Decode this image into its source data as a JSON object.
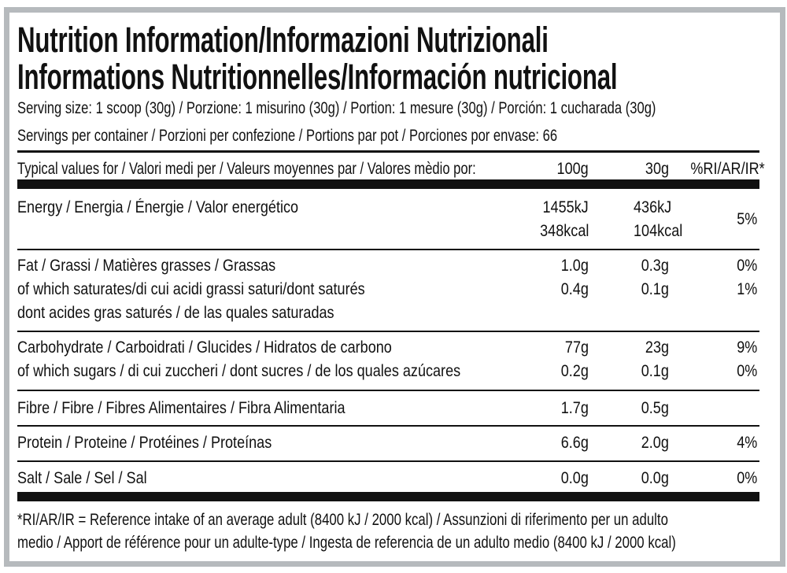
{
  "title_line1": "Nutrition Information/Informazioni Nutrizionali",
  "title_line2": "Informations Nutritionnelles/Información nutricional",
  "serving_size": "Serving size: 1 scoop (30g) / Porzione: 1 misurino (30g) / Portion: 1 mesure (30g) / Porción: 1 cucharada (30g)",
  "servings_per_container": "Servings per container / Porzioni per confezione / Portions par pot / Porciones por envase: 66",
  "header": {
    "label": "Typical values for / Valori medi per / Valeurs moyennes par / Valores mèdio por:",
    "col_100g": "100g",
    "col_30g": "30g",
    "col_ri": "%RI/AR/IR*"
  },
  "energy": {
    "label": "Energy / Energia / Énergie / Valor energético",
    "kj_100g": "1455kJ",
    "kcal_100g": "348kcal",
    "kj_30g": "436kJ",
    "kcal_30g": "104kcal",
    "ri": "5%"
  },
  "fat": {
    "label": "Fat / Grassi / Matières grasses / Grassas",
    "v100": "1.0g",
    "v30": "0.3g",
    "ri": "0%"
  },
  "saturates": {
    "label1": "of which saturates/di cui acidi grassi saturi/dont saturés",
    "label2": "dont acides gras saturés / de las quales saturadas",
    "v100": "0.4g",
    "v30": "0.1g",
    "ri": "1%"
  },
  "carbohydrate": {
    "label": "Carbohydrate / Carboidrati / Glucides / Hidratos de carbono",
    "v100": "77g",
    "v30": "23g",
    "ri": "9%"
  },
  "sugars": {
    "label": "of which sugars / di cui zuccheri / dont sucres / de los quales azúcares",
    "v100": "0.2g",
    "v30": "0.1g",
    "ri": "0%"
  },
  "fibre": {
    "label": "Fibre / Fibre / Fibres Alimentaires / Fibra Alimentaria",
    "v100": "1.7g",
    "v30": "0.5g"
  },
  "protein": {
    "label": "Protein / Proteine / Protéines / Proteínas",
    "v100": "6.6g",
    "v30": "2.0g",
    "ri": "4%"
  },
  "salt": {
    "label": "Salt / Sale / Sel / Sal",
    "v100": "0.0g",
    "v30": "0.0g",
    "ri": "0%"
  },
  "footnote_line1": "*RI/AR/IR = Reference intake of an average adult (8400 kJ / 2000 kcal)  / Assunzioni di riferimento per un adulto",
  "footnote_line2": "medio / Apport de référence pour un adulte-type / Ingesta de referencia de un adulto medio (8400 kJ / 2000 kcal)"
}
